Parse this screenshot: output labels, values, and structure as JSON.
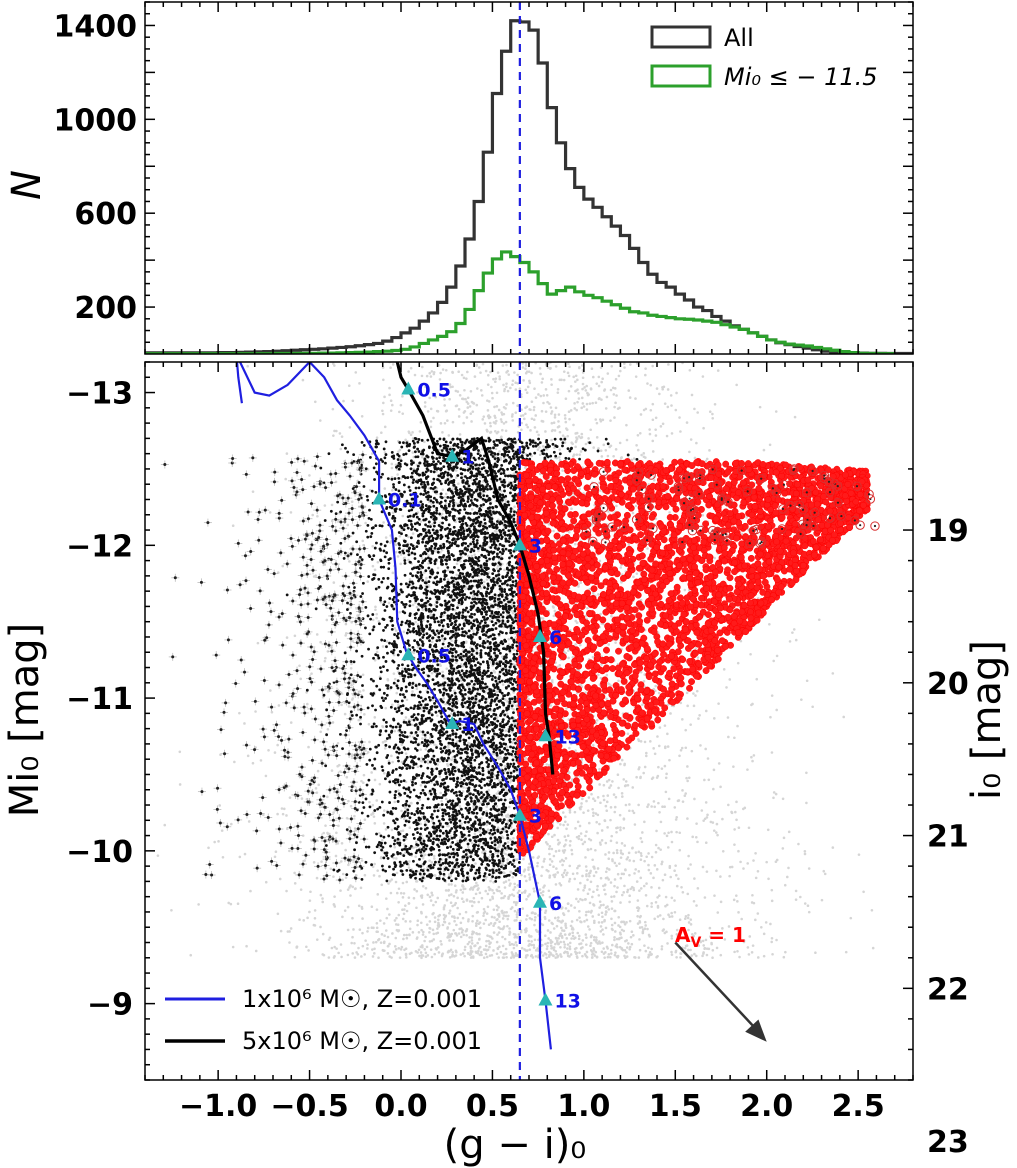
{
  "chart_data": [
    {
      "type": "histogram",
      "panel": "top",
      "ylabel": "N",
      "xlim": [
        -1.4,
        2.8
      ],
      "ylim": [
        0,
        1500
      ],
      "yticks": [
        200,
        600,
        1000,
        1400
      ],
      "vline_x": 0.65,
      "series": [
        {
          "name": "All",
          "color": "#333333",
          "bin_width": 0.05,
          "bin_edges_start": -1.4,
          "values": [
            5,
            5,
            5,
            5,
            5,
            5,
            5,
            5,
            6,
            6,
            7,
            8,
            9,
            10,
            12,
            14,
            16,
            18,
            20,
            22,
            25,
            28,
            31,
            35,
            40,
            45,
            55,
            70,
            90,
            110,
            140,
            175,
            220,
            285,
            375,
            490,
            650,
            860,
            1110,
            1290,
            1420,
            1415,
            1380,
            1240,
            1050,
            900,
            790,
            710,
            660,
            625,
            585,
            545,
            505,
            450,
            390,
            340,
            305,
            285,
            255,
            230,
            200,
            185,
            160,
            140,
            120,
            105,
            90,
            75,
            60,
            48,
            40,
            32,
            25,
            18,
            12,
            8,
            6,
            5,
            4,
            3,
            3,
            2,
            2,
            2
          ]
        },
        {
          "name": "Mi0 ≤ −11.5",
          "legend_label": "Mi₀ ≤ − 11.5",
          "color": "#2ca02c",
          "bin_width": 0.05,
          "bin_edges_start": -1.4,
          "values": [
            1,
            1,
            1,
            1,
            1,
            1,
            1,
            1,
            1,
            1,
            1,
            1,
            1,
            1,
            2,
            2,
            2,
            3,
            3,
            4,
            4,
            5,
            6,
            7,
            8,
            10,
            12,
            15,
            20,
            30,
            45,
            60,
            75,
            95,
            130,
            190,
            270,
            345,
            405,
            435,
            415,
            390,
            350,
            300,
            255,
            270,
            285,
            265,
            250,
            240,
            225,
            210,
            195,
            180,
            175,
            165,
            160,
            155,
            150,
            148,
            145,
            140,
            135,
            125,
            115,
            105,
            90,
            75,
            60,
            50,
            42,
            38,
            34,
            28,
            22,
            16,
            10,
            6,
            3,
            2,
            1,
            1
          ]
        }
      ]
    },
    {
      "type": "scatter",
      "panel": "bottom",
      "xlabel": "(g − i)₀",
      "ylabel": "Mi₀ [mag]",
      "ylabel_right": "i₀ [mag]",
      "xlim": [
        -1.4,
        2.8
      ],
      "ylim": [
        -8.5,
        -13.2
      ],
      "xticks": [
        -1.0,
        -0.5,
        0.0,
        0.5,
        1.0,
        1.5,
        2.0,
        2.5
      ],
      "xtick_labels": [
        "−1.0",
        "−0.5",
        "0.0",
        "0.5",
        "1.0",
        "1.5",
        "2.0",
        "2.5"
      ],
      "yticks": [
        -13,
        -12,
        -11,
        -10,
        -9
      ],
      "ytick_labels": [
        "−13",
        "−12",
        "−11",
        "−10",
        "−9"
      ],
      "right_yticks": [
        19,
        20,
        21,
        22,
        23
      ],
      "distance_modulus": 31.1,
      "vline_x": 0.65,
      "selection": {
        "color_min": 0.65,
        "mag_max": -11.5,
        "mag_faint_edge": -9.95
      },
      "tracks": [
        {
          "name": "1x10^6 Msun, Z=0.001",
          "legend_label": "1x10⁶ M☉, Z=0.001",
          "color": "#1f1fe0",
          "points": [
            [
              -0.87,
              -12.93
            ],
            [
              -0.89,
              -13.1
            ],
            [
              -0.9,
              -13.25
            ],
            [
              -0.8,
              -13.0
            ],
            [
              -0.72,
              -12.98
            ],
            [
              -0.62,
              -13.05
            ],
            [
              -0.5,
              -13.2
            ],
            [
              -0.42,
              -13.1
            ],
            [
              -0.35,
              -12.95
            ],
            [
              -0.28,
              -12.85
            ],
            [
              -0.2,
              -12.72
            ],
            [
              -0.12,
              -12.55
            ],
            [
              -0.12,
              -12.3
            ],
            [
              -0.05,
              -12.1
            ],
            [
              -0.03,
              -11.85
            ],
            [
              -0.02,
              -11.5
            ],
            [
              0.03,
              -11.3
            ],
            [
              0.08,
              -11.2
            ],
            [
              0.14,
              -11.1
            ],
            [
              0.2,
              -10.98
            ],
            [
              0.27,
              -10.83
            ],
            [
              0.32,
              -10.85
            ],
            [
              0.4,
              -10.83
            ],
            [
              0.45,
              -10.7
            ],
            [
              0.53,
              -10.55
            ],
            [
              0.6,
              -10.4
            ],
            [
              0.65,
              -10.23
            ],
            [
              0.7,
              -10.0
            ],
            [
              0.76,
              -9.66
            ],
            [
              0.76,
              -9.3
            ],
            [
              0.79,
              -9.02
            ],
            [
              0.82,
              -8.7
            ]
          ]
        },
        {
          "name": "5x10^6 Msun, Z=0.001",
          "legend_label": "5x10⁶ M☉, Z=0.001",
          "color": "#000000",
          "points": [
            [
              -0.02,
              -13.2
            ],
            [
              0.0,
              -13.1
            ],
            [
              0.04,
              -13.02
            ],
            [
              0.12,
              -12.85
            ],
            [
              0.2,
              -12.6
            ],
            [
              0.28,
              -12.58
            ],
            [
              0.35,
              -12.62
            ],
            [
              0.44,
              -12.7
            ],
            [
              0.48,
              -12.55
            ],
            [
              0.53,
              -12.3
            ],
            [
              0.6,
              -12.15
            ],
            [
              0.65,
              -12.0
            ],
            [
              0.7,
              -11.8
            ],
            [
              0.75,
              -11.55
            ],
            [
              0.78,
              -11.3
            ],
            [
              0.79,
              -10.9
            ],
            [
              0.81,
              -10.75
            ],
            [
              0.83,
              -10.5
            ]
          ]
        }
      ],
      "age_markers_black": [
        {
          "x": 0.04,
          "y": -13.02,
          "label": "0.5"
        },
        {
          "x": 0.28,
          "y": -12.58,
          "label": "1"
        },
        {
          "x": 0.65,
          "y": -12.0,
          "label": "3"
        },
        {
          "x": 0.76,
          "y": -11.4,
          "label": "6"
        },
        {
          "x": 0.79,
          "y": -10.75,
          "label": "13"
        }
      ],
      "age_markers_blue": [
        {
          "x": -0.12,
          "y": -12.3,
          "label": "0.1"
        },
        {
          "x": 0.04,
          "y": -11.28,
          "label": "0.5"
        },
        {
          "x": 0.28,
          "y": -10.83,
          "label": "1"
        },
        {
          "x": 0.65,
          "y": -10.23,
          "label": "3"
        },
        {
          "x": 0.76,
          "y": -9.66,
          "label": "6"
        },
        {
          "x": 0.79,
          "y": -9.02,
          "label": "13"
        }
      ],
      "reddening_vector": {
        "x0": 1.5,
        "y0": -9.4,
        "x1": 2.0,
        "y1": -8.75,
        "label": "A",
        "label_sub": "V",
        "label_rest": " = 1",
        "color": "#ff0000"
      }
    }
  ],
  "colors": {
    "all_hist": "#333333",
    "bright_hist": "#2ca02c",
    "vline": "#1f1fe0",
    "red_points": "#ff0000",
    "marker": "#2ab5b5"
  }
}
